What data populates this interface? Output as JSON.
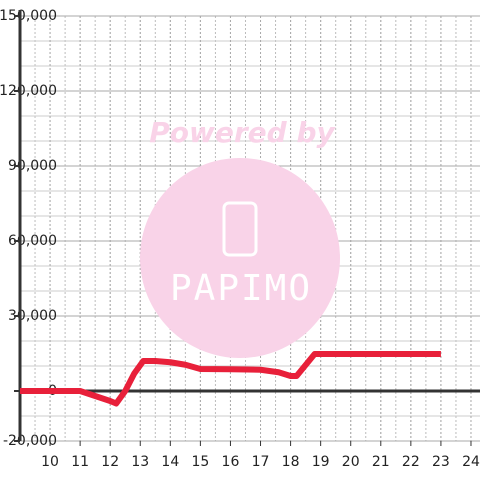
{
  "chart_data": {
    "type": "line",
    "x": [
      9,
      11,
      11.5,
      12,
      12.2,
      12.5,
      12.8,
      13.1,
      13.5,
      14,
      14.5,
      15,
      16,
      17,
      17.6,
      18,
      18.2,
      18.8,
      20,
      21,
      22,
      23
    ],
    "series": [
      {
        "color": "#e8203a",
        "values": [
          0,
          0,
          -2000,
          -4000,
          -5000,
          0,
          7000,
          12000,
          12000,
          11500,
          10500,
          8800,
          8700,
          8500,
          7500,
          6000,
          6000,
          14800,
          14800,
          14800,
          14800,
          14800
        ]
      }
    ],
    "xlim": [
      9,
      24.3
    ],
    "xticks": [
      10,
      11,
      12,
      13,
      14,
      15,
      16,
      17,
      18,
      19,
      20,
      21,
      22,
      23,
      24
    ],
    "ylim": [
      -20000,
      150000
    ],
    "yticks": [
      {
        "value": -20000,
        "label": "-20,000"
      },
      0,
      {
        "value": 30000,
        "label": "30,000"
      },
      {
        "value": 60000,
        "label": "60,000"
      },
      {
        "value": 90000,
        "label": "90,000"
      },
      {
        "value": 120000,
        "label": "120,000"
      },
      {
        "value": 150000,
        "label": "150,000"
      }
    ],
    "grid": true,
    "watermark": {
      "line1": "Powered by",
      "line2": "PAPIMO"
    }
  }
}
